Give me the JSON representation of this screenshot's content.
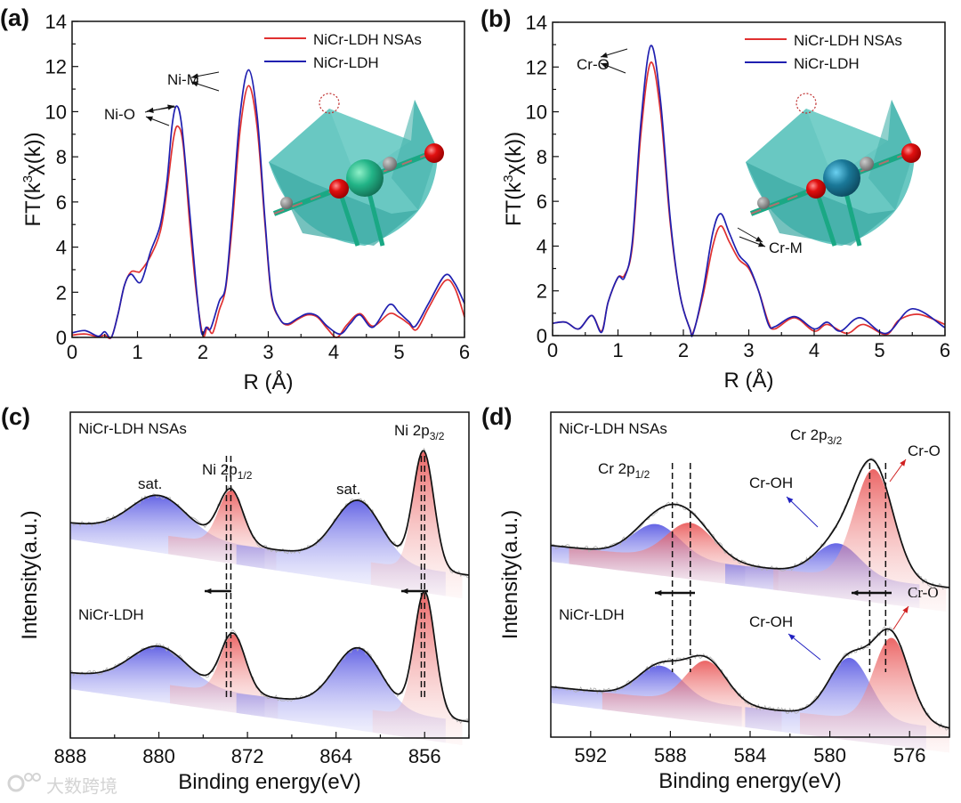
{
  "figure": {
    "watermark": "大数跨境"
  },
  "chart_data": [
    {
      "panel_label": "(a)",
      "type": "line",
      "xlabel": "R (Å)",
      "ylabel": {
        "pre": "FT(k",
        "sup": "3",
        "post": "χ(k))"
      },
      "xlim": [
        0,
        6
      ],
      "ylim": [
        0,
        14
      ],
      "xticks": [
        0,
        1,
        2,
        3,
        4,
        5,
        6
      ],
      "yticks": [
        0,
        2,
        4,
        6,
        8,
        10,
        12,
        14
      ],
      "legend": {
        "position": "top-right",
        "entries": [
          "NiCr-LDH NSAs",
          "NiCr-LDH"
        ]
      },
      "series": [
        {
          "name": "NiCr-LDH NSAs",
          "color": "#e03030",
          "points": [
            [
              0,
              0.1
            ],
            [
              0.2,
              0.15
            ],
            [
              0.4,
              0.03
            ],
            [
              0.5,
              0.1
            ],
            [
              0.6,
              0.0
            ],
            [
              0.7,
              1.0
            ],
            [
              0.8,
              2.3
            ],
            [
              0.9,
              2.9
            ],
            [
              1.0,
              2.9
            ],
            [
              1.05,
              2.95
            ],
            [
              1.2,
              3.6
            ],
            [
              1.35,
              4.7
            ],
            [
              1.45,
              6.5
            ],
            [
              1.55,
              8.8
            ],
            [
              1.62,
              9.35
            ],
            [
              1.7,
              8.5
            ],
            [
              1.8,
              5.0
            ],
            [
              1.9,
              2.0
            ],
            [
              2.0,
              0.1
            ],
            [
              2.07,
              0.45
            ],
            [
              2.15,
              0.2
            ],
            [
              2.25,
              1.2
            ],
            [
              2.35,
              2.2
            ],
            [
              2.45,
              5.0
            ],
            [
              2.57,
              9.2
            ],
            [
              2.7,
              11.15
            ],
            [
              2.83,
              9.3
            ],
            [
              2.95,
              5.0
            ],
            [
              3.05,
              1.8
            ],
            [
              3.18,
              0.8
            ],
            [
              3.3,
              0.55
            ],
            [
              3.45,
              0.8
            ],
            [
              3.6,
              1.0
            ],
            [
              3.75,
              0.9
            ],
            [
              3.9,
              0.4
            ],
            [
              4.05,
              0.0
            ],
            [
              4.2,
              0.55
            ],
            [
              4.4,
              1.05
            ],
            [
              4.6,
              0.5
            ],
            [
              4.85,
              1.05
            ],
            [
              5.0,
              0.9
            ],
            [
              5.15,
              0.6
            ],
            [
              5.27,
              0.35
            ],
            [
              5.45,
              1.3
            ],
            [
              5.7,
              2.5
            ],
            [
              5.85,
              2.2
            ],
            [
              6.0,
              0.9
            ]
          ]
        },
        {
          "name": "NiCr-LDH",
          "color": "#2020b0",
          "points": [
            [
              0,
              0.2
            ],
            [
              0.2,
              0.3
            ],
            [
              0.4,
              0.05
            ],
            [
              0.5,
              0.25
            ],
            [
              0.6,
              0.0
            ],
            [
              0.7,
              1.0
            ],
            [
              0.8,
              2.3
            ],
            [
              0.9,
              2.8
            ],
            [
              1.05,
              2.45
            ],
            [
              1.2,
              3.8
            ],
            [
              1.35,
              5.0
            ],
            [
              1.45,
              6.9
            ],
            [
              1.53,
              9.4
            ],
            [
              1.6,
              10.25
            ],
            [
              1.68,
              9.3
            ],
            [
              1.8,
              5.5
            ],
            [
              1.9,
              2.2
            ],
            [
              1.98,
              0.2
            ],
            [
              2.05,
              0.45
            ],
            [
              2.12,
              0.4
            ],
            [
              2.25,
              1.6
            ],
            [
              2.35,
              2.3
            ],
            [
              2.45,
              5.5
            ],
            [
              2.57,
              9.9
            ],
            [
              2.7,
              11.85
            ],
            [
              2.83,
              9.8
            ],
            [
              2.95,
              5.2
            ],
            [
              3.05,
              1.9
            ],
            [
              3.18,
              0.8
            ],
            [
              3.3,
              0.6
            ],
            [
              3.45,
              0.85
            ],
            [
              3.6,
              1.05
            ],
            [
              3.75,
              0.95
            ],
            [
              3.9,
              0.5
            ],
            [
              4.1,
              0.15
            ],
            [
              4.25,
              0.6
            ],
            [
              4.4,
              1.0
            ],
            [
              4.6,
              0.45
            ],
            [
              4.85,
              1.45
            ],
            [
              5.0,
              1.1
            ],
            [
              5.15,
              0.7
            ],
            [
              5.25,
              0.5
            ],
            [
              5.45,
              1.5
            ],
            [
              5.7,
              2.75
            ],
            [
              5.85,
              2.4
            ],
            [
              6.0,
              1.5
            ]
          ]
        }
      ],
      "annotations": [
        "Ni-O",
        "Ni-M"
      ],
      "inset": "crystal-structure"
    },
    {
      "panel_label": "(b)",
      "type": "line",
      "xlabel": "R (Å)",
      "ylabel": {
        "pre": "FT(k",
        "sup": "3",
        "post": "χ(k))"
      },
      "xlim": [
        0,
        6
      ],
      "ylim": [
        0,
        14
      ],
      "xticks": [
        0,
        1,
        2,
        3,
        4,
        5,
        6
      ],
      "yticks": [
        0,
        2,
        4,
        6,
        8,
        10,
        12,
        14
      ],
      "legend": {
        "position": "top-right",
        "entries": [
          "NiCr-LDH NSAs",
          "NiCr-LDH"
        ]
      },
      "series": [
        {
          "name": "NiCr-LDH NSAs",
          "color": "#e03030",
          "points": [
            [
              0,
              0.55
            ],
            [
              0.2,
              0.6
            ],
            [
              0.4,
              0.3
            ],
            [
              0.6,
              0.9
            ],
            [
              0.75,
              0.2
            ],
            [
              0.85,
              1.5
            ],
            [
              1.0,
              2.6
            ],
            [
              1.1,
              2.7
            ],
            [
              1.22,
              4.0
            ],
            [
              1.35,
              9.0
            ],
            [
              1.5,
              12.2
            ],
            [
              1.65,
              10.0
            ],
            [
              1.8,
              5.0
            ],
            [
              1.95,
              1.8
            ],
            [
              2.1,
              0.3
            ],
            [
              2.15,
              0.15
            ],
            [
              2.3,
              1.8
            ],
            [
              2.45,
              4.0
            ],
            [
              2.57,
              4.9
            ],
            [
              2.7,
              4.2
            ],
            [
              2.85,
              3.4
            ],
            [
              3.0,
              3.0
            ],
            [
              3.15,
              2.0
            ],
            [
              3.3,
              0.6
            ],
            [
              3.4,
              0.3
            ],
            [
              3.7,
              0.8
            ],
            [
              4.0,
              0.2
            ],
            [
              4.2,
              0.5
            ],
            [
              4.5,
              0.1
            ],
            [
              4.75,
              0.5
            ],
            [
              5.1,
              0.05
            ],
            [
              5.3,
              0.7
            ],
            [
              5.6,
              0.95
            ],
            [
              6.0,
              0.5
            ]
          ]
        },
        {
          "name": "NiCr-LDH",
          "color": "#2020b0",
          "points": [
            [
              0,
              0.55
            ],
            [
              0.2,
              0.6
            ],
            [
              0.4,
              0.3
            ],
            [
              0.6,
              0.9
            ],
            [
              0.75,
              0.15
            ],
            [
              0.85,
              1.5
            ],
            [
              1.0,
              2.6
            ],
            [
              1.1,
              2.6
            ],
            [
              1.22,
              4.2
            ],
            [
              1.35,
              9.5
            ],
            [
              1.5,
              12.95
            ],
            [
              1.65,
              10.5
            ],
            [
              1.8,
              5.2
            ],
            [
              1.95,
              1.8
            ],
            [
              2.1,
              0.3
            ],
            [
              2.15,
              0.1
            ],
            [
              2.3,
              2.0
            ],
            [
              2.45,
              4.6
            ],
            [
              2.57,
              5.45
            ],
            [
              2.7,
              4.6
            ],
            [
              2.85,
              3.6
            ],
            [
              3.0,
              3.1
            ],
            [
              3.15,
              2.0
            ],
            [
              3.3,
              0.5
            ],
            [
              3.4,
              0.4
            ],
            [
              3.7,
              0.85
            ],
            [
              4.0,
              0.3
            ],
            [
              4.2,
              0.6
            ],
            [
              4.4,
              0.2
            ],
            [
              4.7,
              0.8
            ],
            [
              5.1,
              0.1
            ],
            [
              5.5,
              1.2
            ],
            [
              6.0,
              0.35
            ]
          ]
        }
      ],
      "annotations": [
        "Cr-O",
        "Cr-M"
      ],
      "inset": "crystal-structure"
    },
    {
      "panel_label": "(c)",
      "type": "line",
      "xlabel": "Binding energy(eV)",
      "ylabel": "Intensity(a.u.)",
      "xlim": [
        888,
        852
      ],
      "ylim": [
        0,
        10
      ],
      "xticks": [
        888,
        880,
        872,
        864,
        856
      ],
      "spectra": [
        {
          "name": "NiCr-LDH NSAs",
          "baseline": [
            6.6,
            5.0
          ],
          "components": [
            {
              "label": "sat.",
              "center": 880.0,
              "height": 1.2,
              "fwhm": 6.0,
              "color": "#5050e0"
            },
            {
              "label": "Ni 2p1/2",
              "center": 873.5,
              "height": 1.65,
              "fwhm": 2.6,
              "color": "#e85050"
            },
            {
              "label": "sat.",
              "center": 862.0,
              "height": 1.85,
              "fwhm": 5.0,
              "color": "#5050e0"
            },
            {
              "label": "Ni 2p3/2",
              "center": 856.1,
              "height": 3.6,
              "fwhm": 2.2,
              "color": "#e85050"
            }
          ]
        },
        {
          "name": "NiCr-LDH",
          "baseline": [
            2.0,
            0.5
          ],
          "components": [
            {
              "label": "sat.",
              "center": 880.0,
              "height": 1.15,
              "fwhm": 6.0,
              "color": "#5050e0"
            },
            {
              "label": "Ni 2p1/2",
              "center": 873.3,
              "height": 1.8,
              "fwhm": 2.6,
              "color": "#e85050"
            },
            {
              "label": "sat.",
              "center": 862.0,
              "height": 1.85,
              "fwhm": 5.0,
              "color": "#5050e0"
            },
            {
              "label": "Ni 2p3/2",
              "center": 856.0,
              "height": 3.8,
              "fwhm": 2.2,
              "color": "#e85050"
            }
          ]
        }
      ],
      "dashed_lines": [
        873.9,
        873.5,
        856.3,
        856.0
      ],
      "labels": {
        "top": "NiCr-LDH NSAs",
        "bottom": "NiCr-LDH",
        "sat": "sat.",
        "p12": {
          "main": "Ni 2p",
          "sub": "1/2"
        },
        "p32": {
          "main": "Ni 2p",
          "sub": "3/2"
        }
      }
    },
    {
      "panel_label": "(d)",
      "type": "line",
      "xlabel": "Binding energy(eV)",
      "ylabel": "Intensity(a.u.)",
      "xlim": [
        594,
        574
      ],
      "ylim": [
        0,
        10
      ],
      "xticks": [
        592,
        588,
        584,
        580,
        576
      ],
      "spectra": [
        {
          "name": "NiCr-LDH NSAs",
          "baseline": [
            5.9,
            4.6
          ],
          "components": [
            {
              "label": "Cr-OH",
              "center": 588.7,
              "height": 1.0,
              "fwhm": 2.8,
              "color": "#5050e0"
            },
            {
              "label": "Cr-O",
              "center": 587.0,
              "height": 1.15,
              "fwhm": 2.8,
              "color": "#e85050"
            },
            {
              "label": "Cr-OH",
              "center": 579.6,
              "height": 1.0,
              "fwhm": 2.6,
              "color": "#5050e0"
            },
            {
              "label": "Cr-O",
              "center": 577.8,
              "height": 3.4,
              "fwhm": 2.3,
              "color": "#e85050"
            }
          ]
        },
        {
          "name": "NiCr-LDH",
          "baseline": [
            1.55,
            0.27
          ],
          "components": [
            {
              "label": "Cr-OH",
              "center": 588.5,
              "height": 1.0,
              "fwhm": 2.6,
              "color": "#5050e0"
            },
            {
              "label": "Cr-O",
              "center": 586.2,
              "height": 1.3,
              "fwhm": 2.4,
              "color": "#e85050"
            },
            {
              "label": "Cr-OH",
              "center": 579.0,
              "height": 1.85,
              "fwhm": 2.4,
              "color": "#5050e0"
            },
            {
              "label": "Cr-O",
              "center": 576.9,
              "height": 2.6,
              "fwhm": 2.1,
              "color": "#e85050"
            }
          ]
        }
      ],
      "dashed_lines": [
        587.9,
        587.0,
        578.0,
        577.2
      ],
      "labels": {
        "top": "NiCr-LDH NSAs",
        "bottom": "NiCr-LDH",
        "cr_oh": "Cr-OH",
        "cr_o": "Cr-O",
        "p12": {
          "main": "Cr 2p",
          "sub": "1/2"
        },
        "p32": {
          "main": "Cr 2p",
          "sub": "3/2"
        }
      }
    }
  ]
}
